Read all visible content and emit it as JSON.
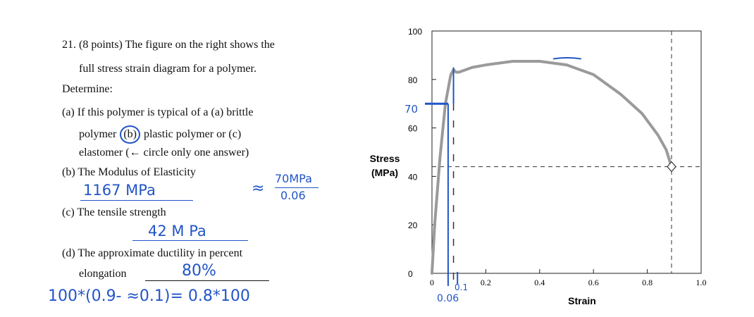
{
  "question": {
    "title": "21. (8 points) The figure on the right shows the",
    "title_cont": "full stress strain diagram for a polymer.",
    "determine": "Determine:",
    "a_line1": "(a) If this polymer is typical of a (a) brittle",
    "a_line2_pre": "polymer",
    "a_line2_circled": "(b)",
    "a_line2_post": "plastic polymer  or (c)",
    "a_line3": "elastomer (← circle only one answer)",
    "b": "(b) The Modulus of Elasticity",
    "c": "(c) The tensile strength",
    "d": "(d) The approximate ductility in percent",
    "d_line2": "elongation"
  },
  "handwriting": {
    "modulus_answer": "1167 MPa",
    "approx_sign": "≈",
    "fraction_num": "70MPa",
    "fraction_den": "0.06",
    "tensile_answer": "42 M Pa",
    "ductility_answer": "80%",
    "calc": "100*(0.9- ≈0.1)= 0.8*100",
    "label_70": "70",
    "label_01": "0.1",
    "label_006": "0.06"
  },
  "colors": {
    "ink": "#2255c8",
    "curve": "#9a9a9a",
    "text": "#111111"
  },
  "chart_data": {
    "type": "line",
    "ylabel_line1": "Stress",
    "ylabel_line2": "(MPa)",
    "xlabel": "Strain",
    "xlim": [
      0,
      1.0
    ],
    "ylim": [
      0,
      100
    ],
    "xticks": [
      "0",
      "0.2",
      "0.4",
      "0.6",
      "0.8",
      "1.0"
    ],
    "yticks": [
      "0",
      "20",
      "40",
      "60",
      "80",
      "100"
    ],
    "series": [
      {
        "x": [
          0,
          0.01,
          0.03,
          0.05,
          0.07,
          0.08,
          0.09,
          0.1,
          0.15,
          0.2,
          0.3,
          0.4,
          0.5,
          0.6,
          0.7,
          0.78,
          0.84,
          0.87,
          0.89
        ],
        "y": [
          0,
          20,
          48,
          70,
          82,
          84,
          83,
          83,
          85,
          86,
          87.5,
          87.5,
          86,
          82,
          74,
          66,
          57,
          51,
          44
        ]
      }
    ],
    "fracture_point": [
      0.89,
      44
    ],
    "dashed_guides": {
      "fracture_strain": 0.89,
      "fracture_stress": 44,
      "yield_strain": 0.08
    }
  }
}
